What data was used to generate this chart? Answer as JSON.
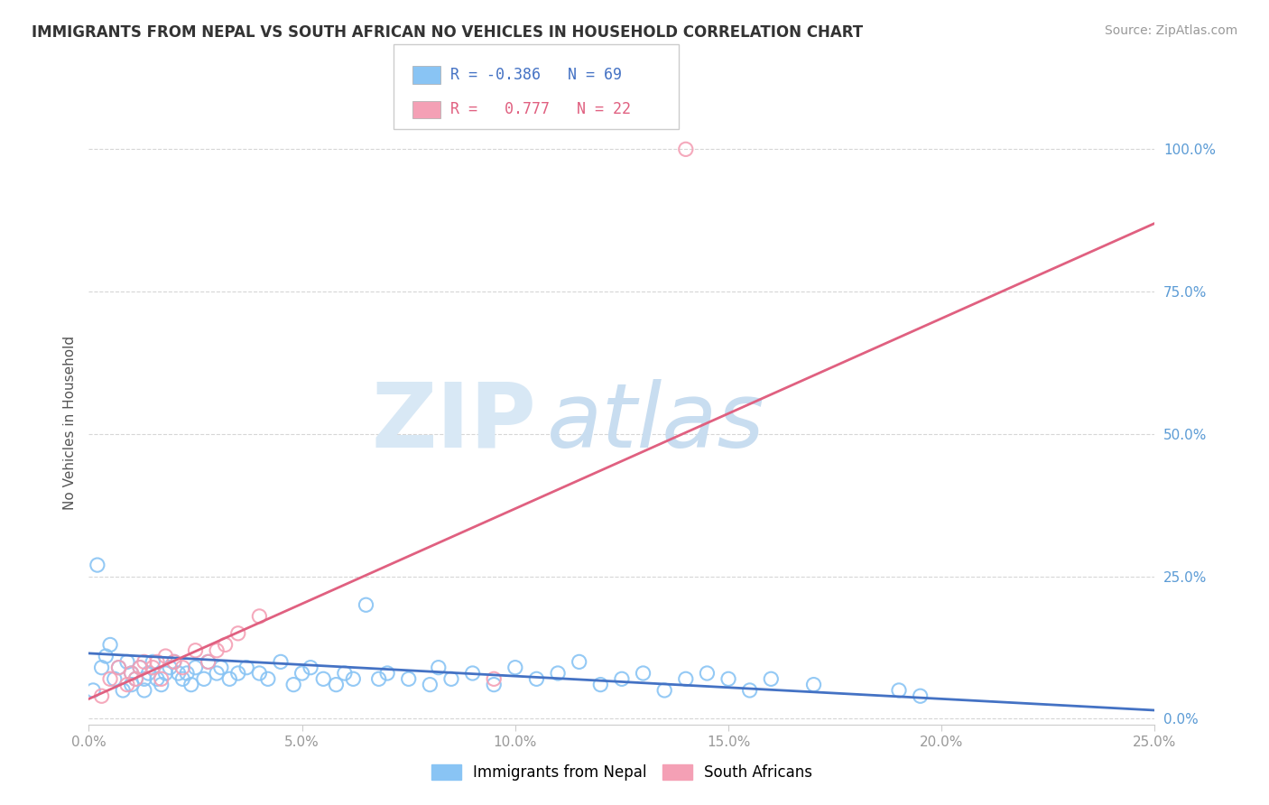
{
  "title": "IMMIGRANTS FROM NEPAL VS SOUTH AFRICAN NO VEHICLES IN HOUSEHOLD CORRELATION CHART",
  "source": "Source: ZipAtlas.com",
  "ylabel": "No Vehicles in Household",
  "xlim": [
    0.0,
    0.25
  ],
  "ylim": [
    -0.01,
    1.05
  ],
  "xtick_labels": [
    "0.0%",
    "5.0%",
    "10.0%",
    "15.0%",
    "20.0%",
    "25.0%"
  ],
  "xtick_values": [
    0.0,
    0.05,
    0.1,
    0.15,
    0.2,
    0.25
  ],
  "ytick_labels": [
    "0.0%",
    "25.0%",
    "50.0%",
    "75.0%",
    "100.0%"
  ],
  "ytick_values": [
    0.0,
    0.25,
    0.5,
    0.75,
    1.0
  ],
  "legend_r1": "R = -0.386",
  "legend_n1": "N = 69",
  "legend_r2": "R =  0.777",
  "legend_n2": "N = 22",
  "color_blue": "#89c4f4",
  "color_pink": "#f4a0b5",
  "color_blue_line": "#4472c4",
  "color_pink_line": "#e06080",
  "watermark_zip": "ZIP",
  "watermark_atlas": "atlas",
  "watermark_color_zip": "#d8e8f5",
  "watermark_color_atlas": "#c8ddf0",
  "nepal_points_x": [
    0.001,
    0.002,
    0.003,
    0.004,
    0.005,
    0.006,
    0.007,
    0.008,
    0.009,
    0.01,
    0.01,
    0.011,
    0.012,
    0.013,
    0.013,
    0.014,
    0.015,
    0.016,
    0.017,
    0.018,
    0.019,
    0.02,
    0.021,
    0.022,
    0.023,
    0.024,
    0.025,
    0.027,
    0.028,
    0.03,
    0.031,
    0.033,
    0.035,
    0.037,
    0.04,
    0.042,
    0.045,
    0.048,
    0.05,
    0.052,
    0.055,
    0.058,
    0.06,
    0.062,
    0.065,
    0.068,
    0.07,
    0.075,
    0.08,
    0.082,
    0.085,
    0.09,
    0.095,
    0.1,
    0.105,
    0.11,
    0.115,
    0.12,
    0.125,
    0.13,
    0.135,
    0.14,
    0.145,
    0.15,
    0.155,
    0.16,
    0.17,
    0.19,
    0.195
  ],
  "nepal_points_y": [
    0.05,
    0.27,
    0.09,
    0.11,
    0.13,
    0.07,
    0.09,
    0.05,
    0.1,
    0.08,
    0.06,
    0.07,
    0.09,
    0.07,
    0.05,
    0.08,
    0.1,
    0.07,
    0.06,
    0.08,
    0.09,
    0.1,
    0.08,
    0.07,
    0.08,
    0.06,
    0.09,
    0.07,
    0.1,
    0.08,
    0.09,
    0.07,
    0.08,
    0.09,
    0.08,
    0.07,
    0.1,
    0.06,
    0.08,
    0.09,
    0.07,
    0.06,
    0.08,
    0.07,
    0.2,
    0.07,
    0.08,
    0.07,
    0.06,
    0.09,
    0.07,
    0.08,
    0.06,
    0.09,
    0.07,
    0.08,
    0.1,
    0.06,
    0.07,
    0.08,
    0.05,
    0.07,
    0.08,
    0.07,
    0.05,
    0.07,
    0.06,
    0.05,
    0.04
  ],
  "sa_points_x": [
    0.003,
    0.005,
    0.007,
    0.009,
    0.01,
    0.011,
    0.012,
    0.013,
    0.015,
    0.016,
    0.017,
    0.018,
    0.02,
    0.022,
    0.025,
    0.028,
    0.03,
    0.032,
    0.035,
    0.04,
    0.095,
    0.14
  ],
  "sa_points_y": [
    0.04,
    0.07,
    0.09,
    0.06,
    0.08,
    0.07,
    0.09,
    0.1,
    0.09,
    0.1,
    0.07,
    0.11,
    0.1,
    0.09,
    0.12,
    0.1,
    0.12,
    0.13,
    0.15,
    0.18,
    0.07,
    1.0
  ],
  "nepal_trend_x": [
    0.0,
    0.25
  ],
  "nepal_trend_y": [
    0.115,
    0.015
  ],
  "sa_trend_x": [
    0.0,
    0.25
  ],
  "sa_trend_y": [
    0.035,
    0.87
  ],
  "background_color": "#ffffff",
  "grid_color": "#cccccc",
  "tick_color_x": "#999999",
  "tick_color_y": "#5b9bd5"
}
